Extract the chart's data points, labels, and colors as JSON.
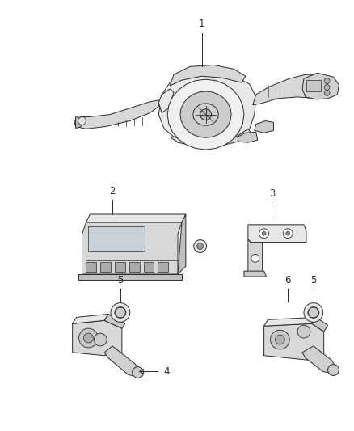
{
  "background_color": "#ffffff",
  "fig_width": 4.38,
  "fig_height": 5.33,
  "dpi": 100,
  "line_color": "#2a2a2a",
  "fill_light": "#e8e8e8",
  "fill_mid": "#cccccc",
  "fill_dark": "#aaaaaa"
}
